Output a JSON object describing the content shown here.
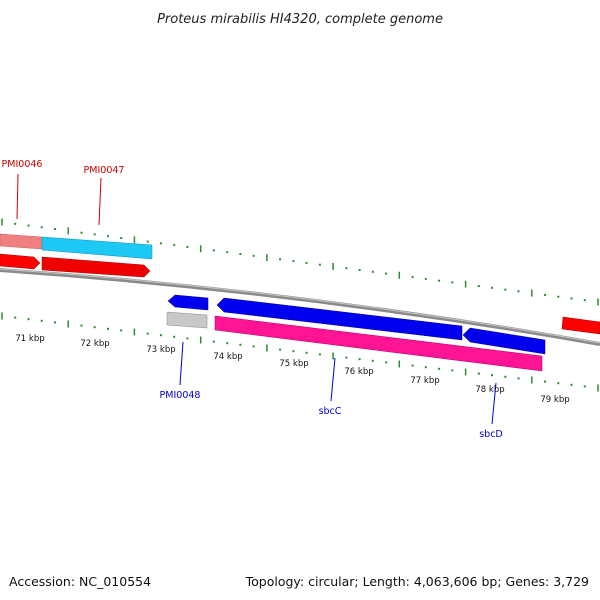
{
  "title": "Proteus mirabilis HI4320, complete genome",
  "footer": {
    "accession": "Accession: NC_010554",
    "summary": "Topology: circular; Length: 4,063,606 bp; Genes: 3,729"
  },
  "colors": {
    "backbone": "#8a8a8a",
    "tick": "#2e8b2e",
    "forward_label": "#cc0000",
    "reverse_label": "#0000cc"
  },
  "scale_labels": [
    "71 kbp",
    "72 kbp",
    "73 kbp",
    "74 kbp",
    "75 kbp",
    "76 kbp",
    "77 kbp",
    "78 kbp",
    "79 kbp"
  ],
  "gene_labels": [
    {
      "id": "PMI0046",
      "text": "PMI0046",
      "strand": "forward"
    },
    {
      "id": "PMI0047",
      "text": "PMI0047",
      "strand": "forward"
    },
    {
      "id": "PMI0048",
      "text": "PMI0048",
      "strand": "reverse"
    },
    {
      "id": "sbcC",
      "text": "sbcC",
      "strand": "reverse"
    },
    {
      "id": "sbcD",
      "text": "sbcD",
      "strand": "reverse"
    }
  ]
}
